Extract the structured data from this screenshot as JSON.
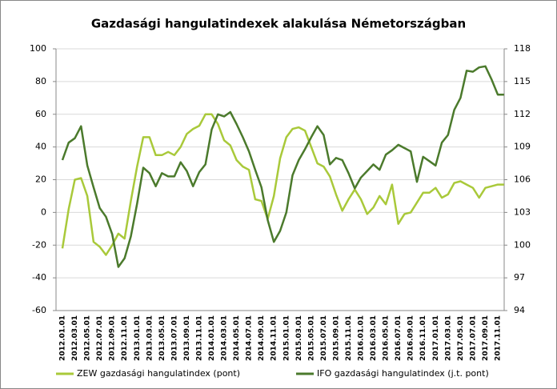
{
  "chart_data": {
    "type": "line",
    "title": "Gazdasági hangulatindexek alakulása Németországban",
    "categories": [
      "2012.01.01",
      null,
      "2012.03.01",
      null,
      "2012.05.01",
      null,
      "2012.07.01",
      null,
      "2012.09.01",
      null,
      "2012.11.01",
      null,
      "2013.01.01",
      null,
      "2013.03.01",
      null,
      "2013.05.01",
      null,
      "2013.07.01",
      null,
      "2013.09.01",
      null,
      "2013.11.01",
      null,
      "2014.01.01",
      null,
      "2014.03.01",
      null,
      "2014.05.01",
      null,
      "2014.07.01",
      null,
      "2014.09.01",
      null,
      "2014.11.01",
      null,
      "2015.01.01",
      null,
      "2015.03.01",
      null,
      "2015.05.01",
      null,
      "2015.07.01",
      null,
      "2015.09.01",
      null,
      "2015.11.01",
      null,
      "2016.01.01",
      null,
      "2016.03.01",
      null,
      "2016.05.01",
      null,
      "2016.07.01",
      null,
      "2016.09.01",
      null,
      "2016.11.01",
      null,
      "2017.01.01",
      null,
      "2017.03.01",
      null,
      "2017.05.01",
      null,
      "2017.07.01",
      null,
      "2017.09.01",
      null,
      "2017.11.01",
      null
    ],
    "series": [
      {
        "name": "ZEW gazdasági hangulatindex (pont)",
        "color": "#a9c93a",
        "values": [
          -22,
          2,
          20,
          21,
          10,
          -18,
          -21,
          -26,
          -20,
          -13,
          -16,
          7,
          28,
          46,
          46,
          35,
          35,
          37,
          35,
          40,
          48,
          51,
          53,
          60,
          60,
          54,
          44,
          41,
          32,
          28,
          26,
          8,
          7,
          -4,
          10,
          33,
          46,
          51,
          52,
          50,
          40,
          30,
          28,
          22,
          11,
          1,
          8,
          14,
          8,
          -1,
          3,
          10,
          5,
          17,
          -7,
          -1,
          0,
          6,
          12,
          12,
          15,
          9,
          11,
          18,
          19,
          17,
          15,
          9,
          15,
          16,
          17,
          17
        ]
      },
      {
        "name": "IFO gazdasági hangulatindex (j.t. pont)",
        "color": "#4b7a2c",
        "axis": "y2",
        "values": [
          107.8,
          109.4,
          109.8,
          110.9,
          107.3,
          105.3,
          103.4,
          102.6,
          101.0,
          98.0,
          98.8,
          100.8,
          103.8,
          107.1,
          106.6,
          105.4,
          106.6,
          106.3,
          106.3,
          107.6,
          106.8,
          105.4,
          106.7,
          107.4,
          110.6,
          112.0,
          111.8,
          112.2,
          111.1,
          109.9,
          108.6,
          106.9,
          105.3,
          102.3,
          100.3,
          101.3,
          103.0,
          106.4,
          107.8,
          108.8,
          109.9,
          110.9,
          110.1,
          107.4,
          108.0,
          107.8,
          106.6,
          105.2,
          106.2,
          106.8,
          107.4,
          106.9,
          108.3,
          108.7,
          109.2,
          108.9,
          108.6,
          105.8,
          108.1,
          107.7,
          107.3,
          109.4,
          110.1,
          112.4,
          113.5,
          116.0,
          115.9,
          116.3,
          116.4,
          115.2,
          113.8,
          113.8
        ]
      }
    ],
    "ylim": [
      -60,
      100
    ],
    "yticks": [
      -60,
      -40,
      -20,
      0,
      20,
      40,
      60,
      80,
      100
    ],
    "y2lim": [
      94,
      118
    ],
    "y2ticks": [
      94,
      97,
      100,
      103,
      106,
      109,
      112,
      115,
      118
    ],
    "grid": true,
    "legend": "bottom"
  }
}
